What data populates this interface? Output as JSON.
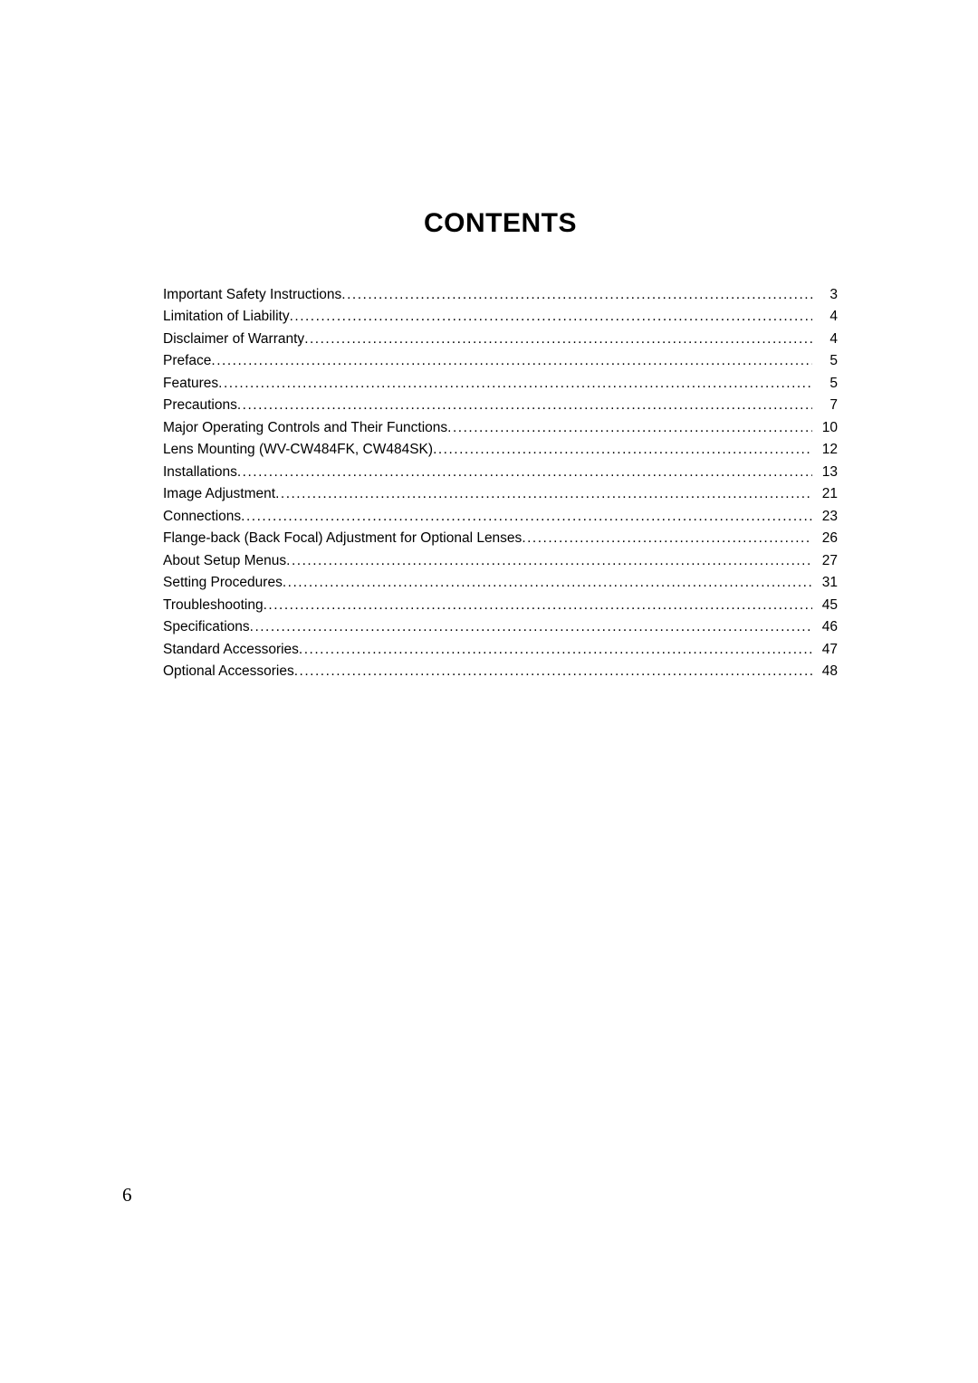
{
  "title": "CONTENTS",
  "toc": [
    {
      "label": "Important Safety Instructions",
      "page": "3"
    },
    {
      "label": "Limitation of Liability",
      "page": "4"
    },
    {
      "label": "Disclaimer of Warranty",
      "page": "4"
    },
    {
      "label": "Preface",
      "page": "5"
    },
    {
      "label": "Features",
      "page": "5"
    },
    {
      "label": "Precautions",
      "page": "7"
    },
    {
      "label": "Major Operating Controls and Their Functions",
      "page": "10"
    },
    {
      "label": "Lens Mounting (WV-CW484FK, CW484SK)",
      "page": "12"
    },
    {
      "label": "Installations",
      "page": "13"
    },
    {
      "label": "Image Adjustment",
      "page": "21"
    },
    {
      "label": "Connections",
      "page": "23"
    },
    {
      "label": "Flange-back (Back Focal) Adjustment for Optional Lenses",
      "page": "26"
    },
    {
      "label": "About Setup Menus",
      "page": "27"
    },
    {
      "label": "Setting Procedures",
      "page": "31"
    },
    {
      "label": "Troubleshooting",
      "page": "45"
    },
    {
      "label": "Specifications",
      "page": "46"
    },
    {
      "label": "Standard Accessories",
      "page": "47"
    },
    {
      "label": "Optional Accessories",
      "page": "48"
    }
  ],
  "page_number": "6",
  "style": {
    "background_color": "#ffffff",
    "text_color": "#000000",
    "title_fontsize": 30,
    "body_fontsize": 15.5,
    "pagenum_fontsize": 21
  }
}
